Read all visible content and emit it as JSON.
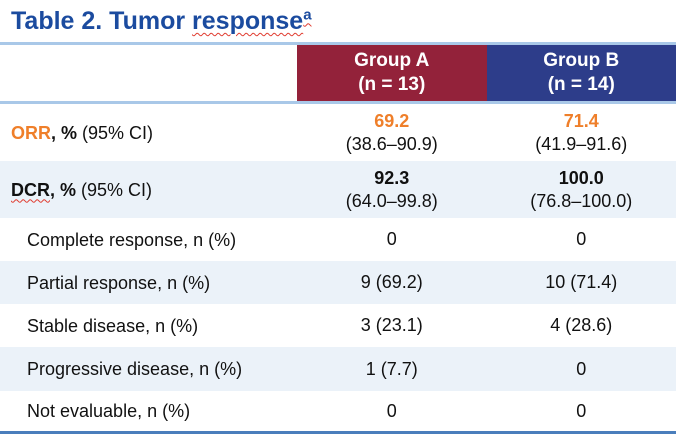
{
  "title": {
    "prefix": "Table 2. Tumor ",
    "word": "response",
    "footnote_marker": "a"
  },
  "colors": {
    "title_blue": "#1b4b9f",
    "group_a_red": "#93223a",
    "group_b_blue": "#2d3d8a",
    "row_shade_blue": "#ebf2f9",
    "light_rule_blue": "#a9c8e8",
    "bottom_rule_blue": "#4a7ebc",
    "accent_orange": "#ef7f2a",
    "squiggle_red": "#e03b2f"
  },
  "header": {
    "group_a": {
      "name": "Group A",
      "n": "(n = 13)"
    },
    "group_b": {
      "name": "Group B",
      "n": "(n = 14)"
    }
  },
  "rows": [
    {
      "label_em": "ORR",
      "label_bold": ", %",
      "label_rest": " (95% CI)",
      "a_value": "69.2",
      "a_ci": "(38.6–90.9)",
      "b_value": "71.4",
      "b_ci": "(41.9–91.6)"
    },
    {
      "label_em": "DCR",
      "label_bold": ", %",
      "label_rest": " (95% CI)",
      "a_value": "92.3",
      "a_ci": "(64.0–99.8)",
      "b_value": "100.0",
      "b_ci": "(76.8–100.0)"
    },
    {
      "label": "Complete response, n (%)",
      "a_value": "0",
      "b_value": "0"
    },
    {
      "label": "Partial response, n (%)",
      "a_value": "9 (69.2)",
      "b_value": "10 (71.4)"
    },
    {
      "label": "Stable disease, n (%)",
      "a_value": "3 (23.1)",
      "b_value": "4 (28.6)"
    },
    {
      "label": "Progressive disease, n (%)",
      "a_value": "1 (7.7)",
      "b_value": "0"
    },
    {
      "label": "Not evaluable, n (%)",
      "a_value": "0",
      "b_value": "0"
    }
  ]
}
